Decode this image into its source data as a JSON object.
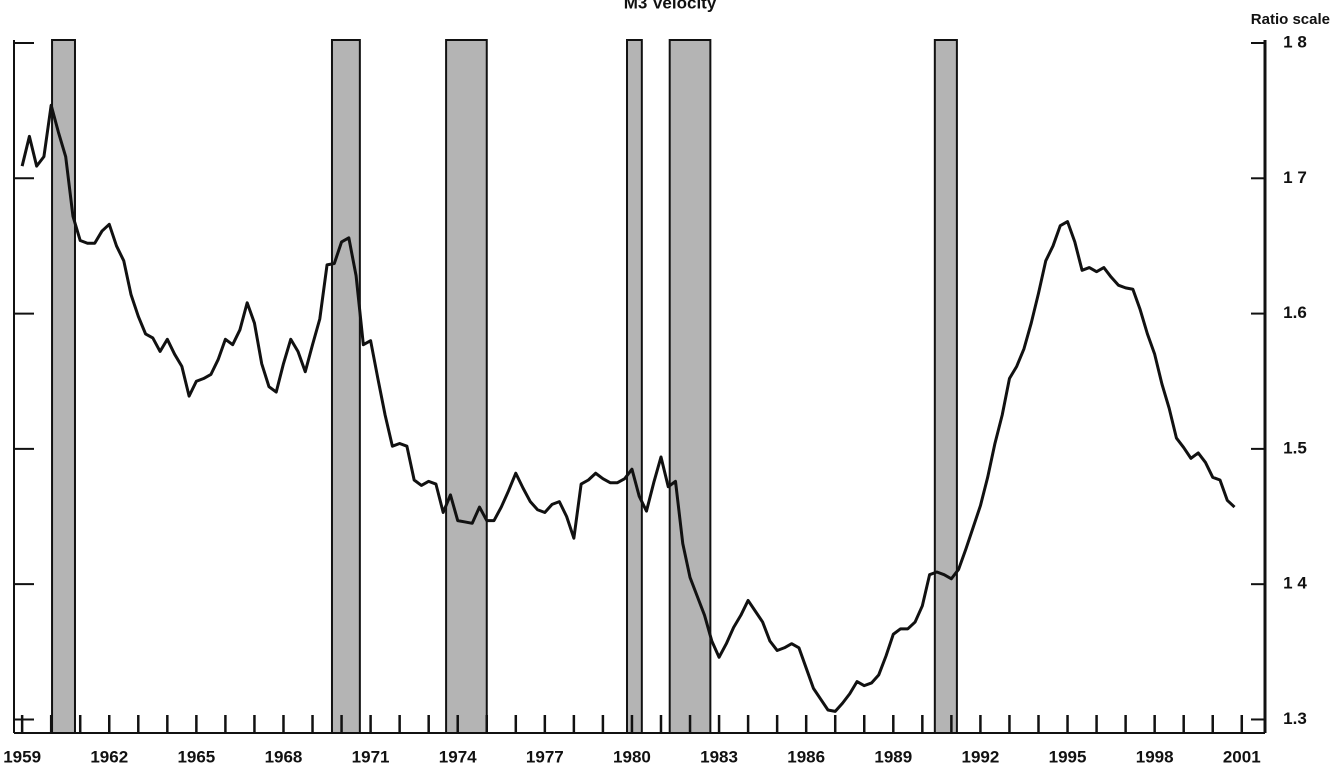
{
  "chart_data": {
    "type": "line",
    "title": "M3 Velocity",
    "y_axis_label": "Ratio scale",
    "x": [
      1959,
      1959.25,
      1959.5,
      1959.75,
      1960,
      1960.25,
      1960.5,
      1960.75,
      1961,
      1961.25,
      1961.5,
      1961.75,
      1962,
      1962.25,
      1962.5,
      1962.75,
      1963,
      1963.25,
      1963.5,
      1963.75,
      1964,
      1964.25,
      1964.5,
      1964.75,
      1965,
      1965.25,
      1965.5,
      1965.75,
      1966,
      1966.25,
      1966.5,
      1966.75,
      1967,
      1967.25,
      1967.5,
      1967.75,
      1968,
      1968.25,
      1968.5,
      1968.75,
      1969,
      1969.25,
      1969.5,
      1969.75,
      1970,
      1970.25,
      1970.5,
      1970.75,
      1971,
      1971.25,
      1971.5,
      1971.75,
      1972,
      1972.25,
      1972.5,
      1972.75,
      1973,
      1973.25,
      1973.5,
      1973.75,
      1974,
      1974.25,
      1974.5,
      1974.75,
      1975,
      1975.25,
      1975.5,
      1975.75,
      1976,
      1976.25,
      1976.5,
      1976.75,
      1977,
      1977.25,
      1977.5,
      1977.75,
      1978,
      1978.25,
      1978.5,
      1978.75,
      1979,
      1979.25,
      1979.5,
      1979.75,
      1980,
      1980.25,
      1980.5,
      1980.75,
      1981,
      1981.25,
      1981.5,
      1981.75,
      1982,
      1982.25,
      1982.5,
      1982.75,
      1983,
      1983.25,
      1983.5,
      1983.75,
      1984,
      1984.25,
      1984.5,
      1984.75,
      1985,
      1985.25,
      1985.5,
      1985.75,
      1986,
      1986.25,
      1986.5,
      1986.75,
      1987,
      1987.25,
      1987.5,
      1987.75,
      1988,
      1988.25,
      1988.5,
      1988.75,
      1989,
      1989.25,
      1989.5,
      1989.75,
      1990,
      1990.25,
      1990.5,
      1990.75,
      1991,
      1991.25,
      1991.5,
      1991.75,
      1992,
      1992.25,
      1992.5,
      1992.75,
      1993,
      1993.25,
      1993.5,
      1993.75,
      1994,
      1994.25,
      1994.5,
      1994.75,
      1995,
      1995.25,
      1995.5,
      1995.75,
      1996,
      1996.25,
      1996.5,
      1996.75,
      1997,
      1997.25,
      1997.5,
      1997.75,
      1998,
      1998.25,
      1998.5,
      1998.75,
      1999,
      1999.25,
      1999.5,
      1999.75,
      2000,
      2000.25,
      2000.5,
      2000.75
    ],
    "series": [
      {
        "color": "#111111",
        "values": [
          1.709,
          1.731,
          1.709,
          1.716,
          1.754,
          1.734,
          1.716,
          1.672,
          1.654,
          1.652,
          1.652,
          1.661,
          1.666,
          1.65,
          1.639,
          1.614,
          1.598,
          1.585,
          1.582,
          1.572,
          1.581,
          1.57,
          1.561,
          1.539,
          1.55,
          1.552,
          1.555,
          1.566,
          1.581,
          1.577,
          1.588,
          1.608,
          1.593,
          1.563,
          1.546,
          1.542,
          1.563,
          1.581,
          1.572,
          1.557,
          1.577,
          1.596,
          1.636,
          1.637,
          1.653,
          1.656,
          1.628,
          1.577,
          1.58,
          1.552,
          1.525,
          1.502,
          1.504,
          1.502,
          1.477,
          1.473,
          1.476,
          1.474,
          1.453,
          1.466,
          1.447,
          1.446,
          1.445,
          1.457,
          1.447,
          1.447,
          1.457,
          1.469,
          1.482,
          1.471,
          1.461,
          1.455,
          1.453,
          1.459,
          1.461,
          1.45,
          1.434,
          1.474,
          1.477,
          1.482,
          1.478,
          1.475,
          1.475,
          1.478,
          1.485,
          1.465,
          1.454,
          1.475,
          1.494,
          1.472,
          1.476,
          1.43,
          1.405,
          1.391,
          1.377,
          1.358,
          1.346,
          1.356,
          1.368,
          1.377,
          1.388,
          1.38,
          1.372,
          1.358,
          1.351,
          1.353,
          1.356,
          1.353,
          1.338,
          1.323,
          1.315,
          1.307,
          1.306,
          1.312,
          1.319,
          1.328,
          1.325,
          1.327,
          1.333,
          1.347,
          1.363,
          1.367,
          1.367,
          1.372,
          1.384,
          1.407,
          1.409,
          1.407,
          1.404,
          1.411,
          1.426,
          1.442,
          1.458,
          1.479,
          1.504,
          1.525,
          1.552,
          1.561,
          1.574,
          1.593,
          1.615,
          1.639,
          1.65,
          1.665,
          1.668,
          1.653,
          1.632,
          1.634,
          1.631,
          1.634,
          1.627,
          1.621,
          1.619,
          1.618,
          1.603,
          1.585,
          1.57,
          1.548,
          1.53,
          1.508,
          1.501,
          1.493,
          1.497,
          1.49,
          1.479,
          1.477,
          1.462,
          1.457
        ]
      }
    ],
    "recession_shading": [
      [
        1960.03,
        1960.82
      ],
      [
        1969.67,
        1970.63
      ],
      [
        1973.6,
        1975.0
      ],
      [
        1979.83,
        1980.34
      ],
      [
        1981.3,
        1982.7
      ],
      [
        1990.43,
        1991.19
      ]
    ],
    "shading_color": "#b4b4b4",
    "xlim": [
      1958.72,
      2001.8
    ],
    "xticks": [
      1959,
      1962,
      1965,
      1968,
      1971,
      1974,
      1977,
      1980,
      1983,
      1986,
      1989,
      1992,
      1995,
      1998,
      2001
    ],
    "xticks_minor": [
      1959,
      1960,
      1961,
      1962,
      1963,
      1964,
      1965,
      1966,
      1967,
      1968,
      1969,
      1970,
      1971,
      1972,
      1973,
      1974,
      1975,
      1976,
      1977,
      1978,
      1979,
      1980,
      1981,
      1982,
      1983,
      1984,
      1985,
      1986,
      1987,
      1988,
      1989,
      1990,
      1991,
      1992,
      1993,
      1994,
      1995,
      1996,
      1997,
      1998,
      1999,
      2000,
      2001
    ],
    "ylim": [
      1.29,
      1.8
    ],
    "yticks": [
      {
        "value": 1.3,
        "label": "1.3"
      },
      {
        "value": 1.4,
        "label": "1 4"
      },
      {
        "value": 1.5,
        "label": "1.5"
      },
      {
        "value": 1.6,
        "label": "1.6"
      },
      {
        "value": 1.7,
        "label": "1 7"
      },
      {
        "value": 1.8,
        "label": "1 8"
      }
    ]
  }
}
